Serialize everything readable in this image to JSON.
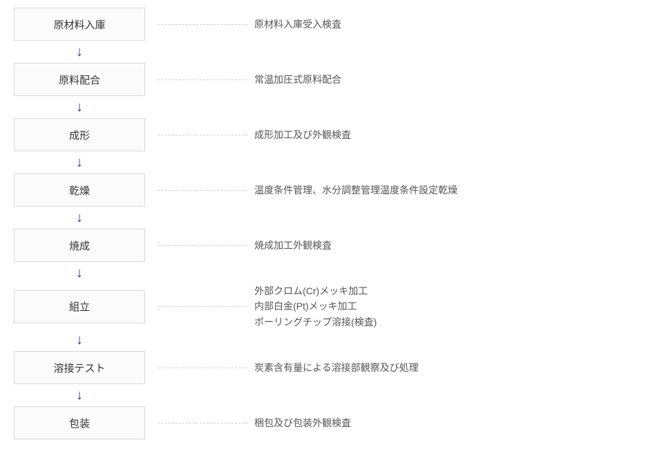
{
  "type": "flowchart",
  "direction": "vertical",
  "colors": {
    "boxBackground": "#fbfbfb",
    "boxBorder": "#d9d9d9",
    "boxText": "#333333",
    "descText": "#555555",
    "connector": "#cfcfcf",
    "arrow": "#1b3e8c",
    "pageBackground": "#ffffff"
  },
  "layout": {
    "boxWidth": 190,
    "boxHeight": 48,
    "connectorWidth": 130,
    "arrowGap": 30,
    "boxFontSize": 15,
    "descFontSize": 14
  },
  "steps": [
    {
      "label": "原材料入庫",
      "desc": "原材料入庫受入検査"
    },
    {
      "label": "原料配合",
      "desc": "常温加圧式原料配合"
    },
    {
      "label": "成形",
      "desc": "成形加工及び外観検査"
    },
    {
      "label": "乾燥",
      "desc": "温度条件管理、水分調整管理温度条件設定乾燥"
    },
    {
      "label": "焼成",
      "desc": "焼成加工外観検査"
    },
    {
      "label": "組立",
      "desc": "外部クロム(Cr)メッキ加工\n内部白金(Pt)メッキ加工\nポーリングチップ溶接(検査)"
    },
    {
      "label": "溶接テスト",
      "desc": "炭素含有量による溶接部観察及び処理"
    },
    {
      "label": "包装",
      "desc": "梱包及び包装外観検査"
    }
  ]
}
